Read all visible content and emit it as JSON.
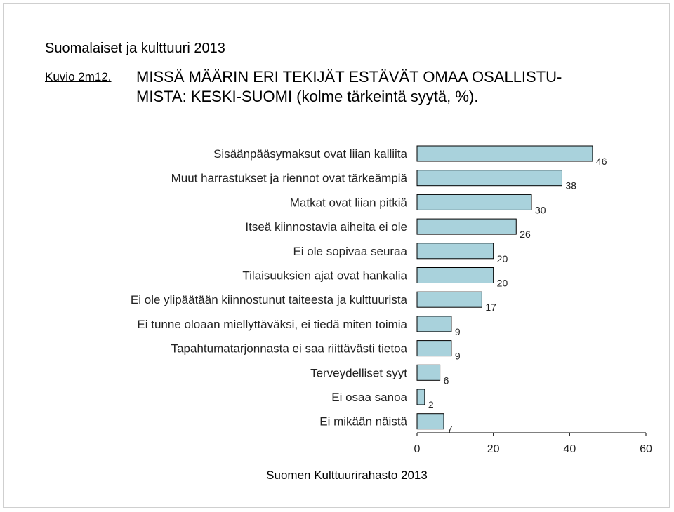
{
  "header": {
    "document_title": "Suomalaiset ja kulttuuri 2013",
    "figure_id": "Kuvio 2m12.",
    "figure_title": "MISSÄ MÄÄRIN ERI TEKIJÄT ESTÄVÄT OMAA OSALLISTU-MISTA: KESKI-SUOMI (kolme tärkeintä syytä, %)."
  },
  "footer": {
    "source": "Suomen Kulttuurirahasto 2013"
  },
  "colors": {
    "bar_fill": "#a9d2dc",
    "bar_stroke": "#000000"
  },
  "chart_data": {
    "type": "bar",
    "orientation": "horizontal",
    "categories": [
      "Sisäänpääsymaksut ovat liian kalliita",
      "Muut harrastukset ja riennot ovat tärkeämpiä",
      "Matkat ovat liian pitkiä",
      "Itseä kiinnostavia aiheita ei ole",
      "Ei ole sopivaa seuraa",
      "Tilaisuuksien ajat ovat hankalia",
      "Ei ole ylipäätään kiinnostunut taiteesta ja kulttuurista",
      "Ei tunne oloaan miellyttäväksi, ei tiedä miten toimia",
      "Tapahtumatarjonnasta ei saa riittävästi tietoa",
      "Terveydelliset syyt",
      "Ei osaa sanoa",
      "Ei mikään näistä"
    ],
    "values": [
      46,
      38,
      30,
      26,
      20,
      20,
      17,
      9,
      9,
      6,
      2,
      7
    ],
    "xlim": [
      0,
      60
    ],
    "xticks": [
      0,
      20,
      40,
      60
    ],
    "data_labels": true,
    "grid": false,
    "legend": "none"
  }
}
